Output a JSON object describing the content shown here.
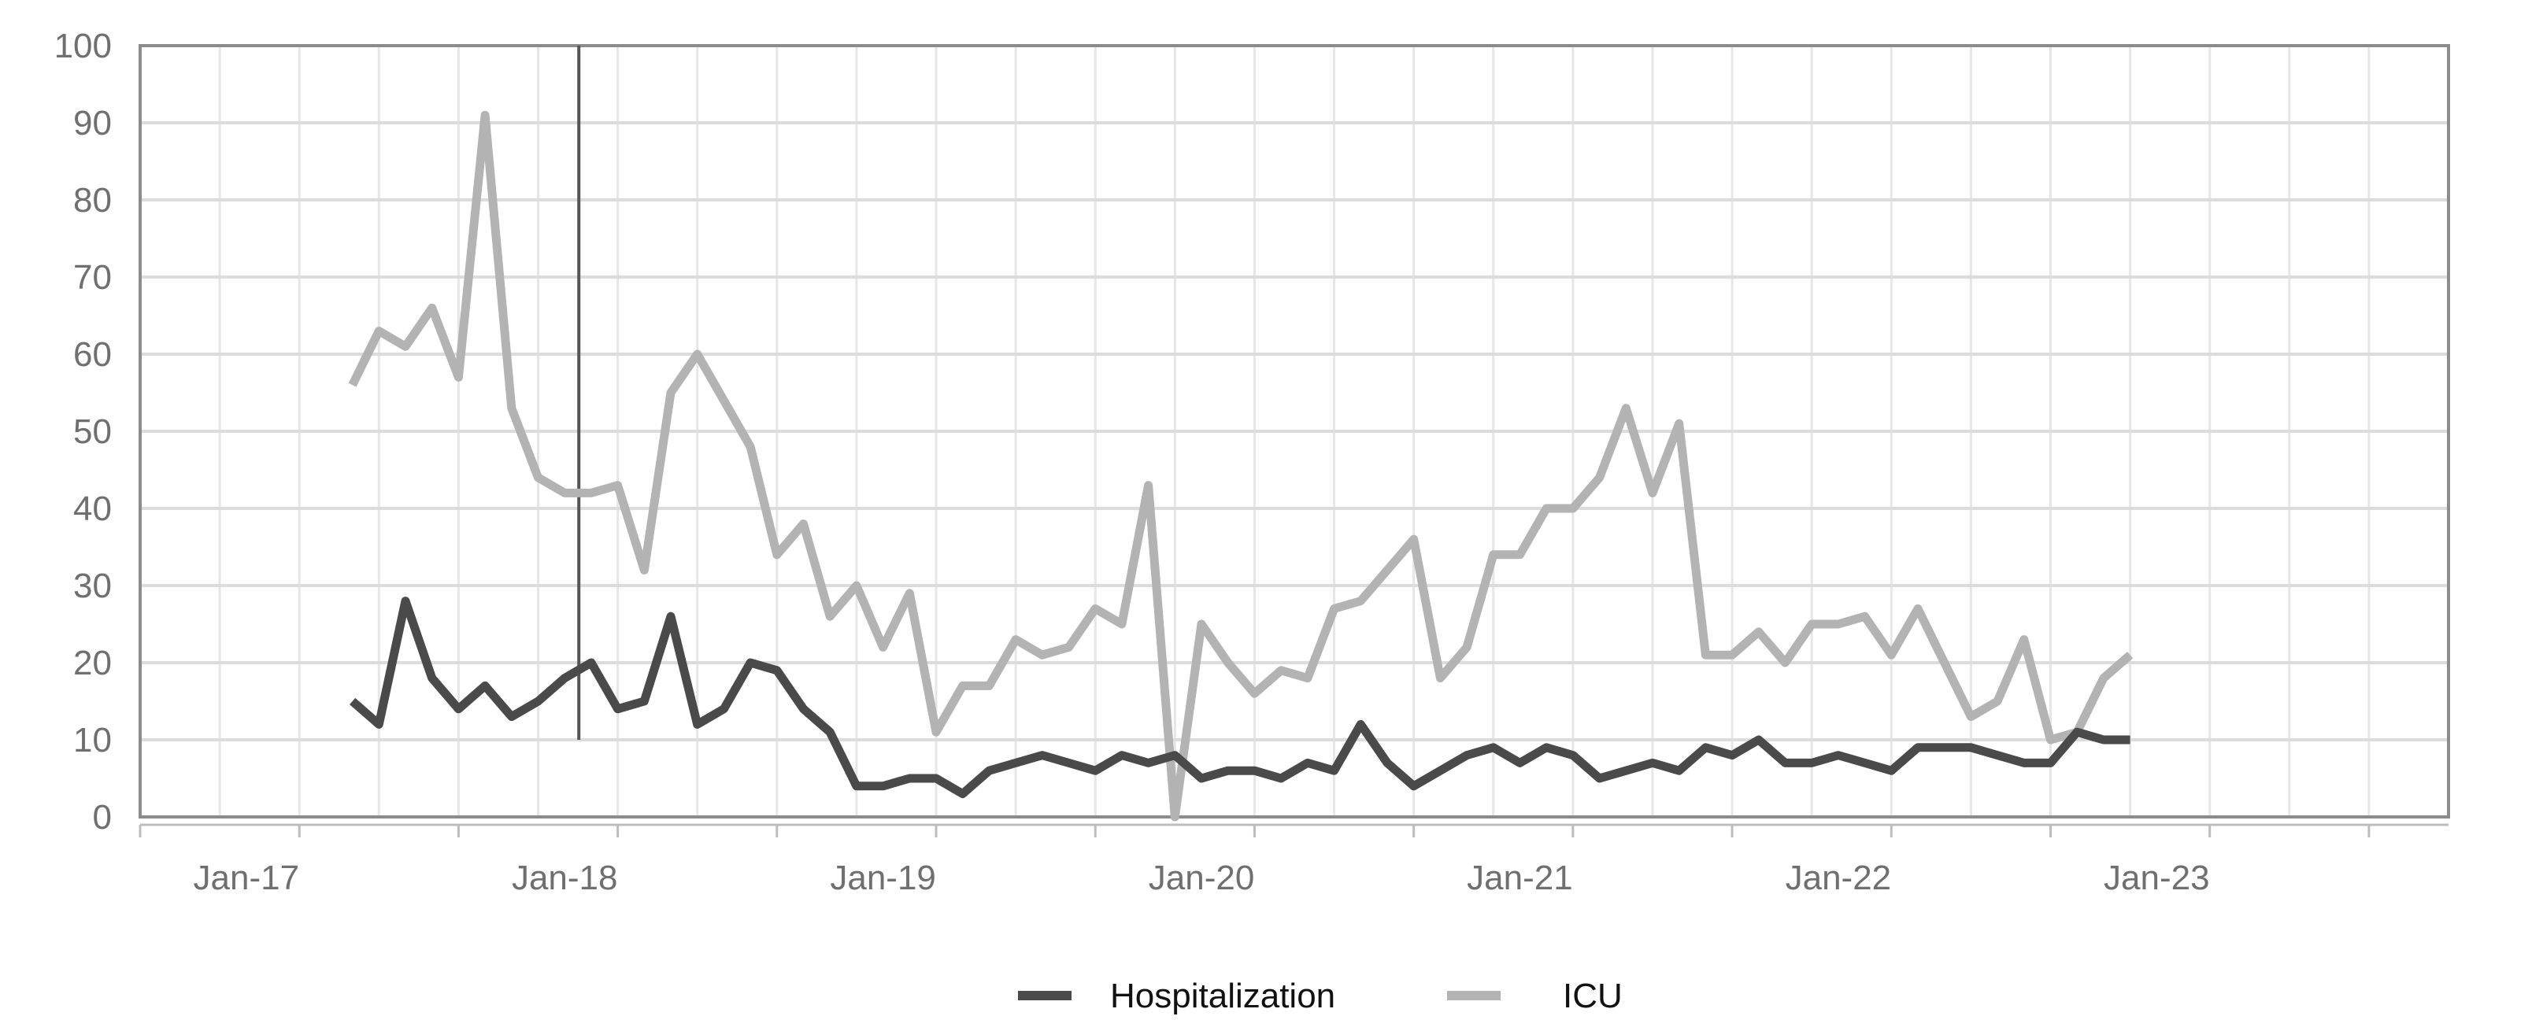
{
  "chart_data": {
    "type": "line",
    "title": "",
    "xlabel": "",
    "ylabel": "",
    "x_axis_type": "monthly dates",
    "x_tick_labels": [
      "Jan-17",
      "Jan-18",
      "Jan-19",
      "Jan-20",
      "Jan-21",
      "Jan-22",
      "Jan-23"
    ],
    "x_tick_dates": [
      "2017-01",
      "2018-01",
      "2019-01",
      "2020-01",
      "2021-01",
      "2022-01",
      "2023-01"
    ],
    "xlim": [
      "2016-09",
      "2023-12"
    ],
    "ylim": [
      0,
      100
    ],
    "y_ticks": [
      0,
      10,
      20,
      30,
      40,
      50,
      60,
      70,
      80,
      90,
      100
    ],
    "grid": true,
    "legend_position": "bottom-center",
    "annotations": [
      {
        "type": "vertical-line",
        "x": "2018-01",
        "y_range": [
          10,
          100
        ]
      }
    ],
    "x": [
      "2017-05",
      "2017-06",
      "2017-07",
      "2017-08",
      "2017-09",
      "2017-10",
      "2017-11",
      "2017-12",
      "2018-01",
      "2018-02",
      "2018-03",
      "2018-04",
      "2018-05",
      "2018-06",
      "2018-07",
      "2018-08",
      "2018-09",
      "2018-10",
      "2018-11",
      "2018-12",
      "2019-01",
      "2019-02",
      "2019-03",
      "2019-04",
      "2019-05",
      "2019-06",
      "2019-07",
      "2019-08",
      "2019-09",
      "2019-10",
      "2019-11",
      "2019-12",
      "2020-01",
      "2020-02",
      "2020-03",
      "2020-04",
      "2020-05",
      "2020-06",
      "2020-07",
      "2020-08",
      "2020-09",
      "2020-10",
      "2020-11",
      "2020-12",
      "2021-01",
      "2021-02",
      "2021-03",
      "2021-04",
      "2021-05",
      "2021-06",
      "2021-07",
      "2021-08",
      "2021-09",
      "2021-10",
      "2021-11",
      "2021-12",
      "2022-01",
      "2022-02",
      "2022-03",
      "2022-04",
      "2022-05",
      "2022-06",
      "2022-07",
      "2022-08",
      "2022-09",
      "2022-10",
      "2022-11",
      "2022-12"
    ],
    "series": [
      {
        "name": "Hospitalization",
        "color": "#4a4a4a",
        "values": [
          15,
          12,
          28,
          18,
          14,
          17,
          13,
          15,
          18,
          20,
          14,
          15,
          26,
          12,
          14,
          20,
          19,
          14,
          11,
          4,
          4,
          5,
          5,
          3,
          6,
          7,
          8,
          7,
          6,
          8,
          7,
          8,
          5,
          6,
          6,
          5,
          7,
          6,
          12,
          7,
          4,
          6,
          8,
          9,
          7,
          9,
          8,
          5,
          6,
          7,
          6,
          9,
          8,
          10,
          7,
          7,
          8,
          7,
          6,
          9,
          9,
          9,
          8,
          7,
          7,
          11,
          10,
          10
        ]
      },
      {
        "name": "ICU",
        "color": "#b3b3b3",
        "values": [
          56,
          63,
          61,
          66,
          57,
          91,
          53,
          44,
          42,
          42,
          43,
          32,
          55,
          60,
          54,
          48,
          34,
          38,
          26,
          30,
          22,
          29,
          11,
          17,
          17,
          23,
          21,
          22,
          27,
          25,
          43,
          0,
          25,
          20,
          16,
          19,
          18,
          27,
          28,
          32,
          36,
          18,
          22,
          34,
          34,
          40,
          40,
          44,
          53,
          42,
          51,
          21,
          21,
          24,
          20,
          25,
          25,
          26,
          21,
          27,
          20,
          13,
          15,
          23,
          10,
          11,
          18,
          21
        ]
      }
    ]
  }
}
